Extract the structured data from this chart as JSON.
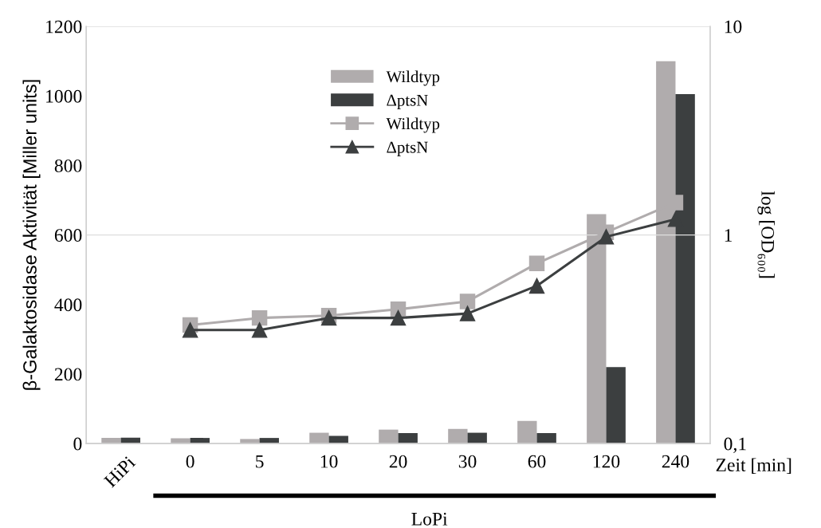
{
  "chart_data": {
    "type": "bar",
    "ylabel": "β-Galaktosidase Aktivität [Miller units]",
    "y2label": "log [OD₆₀₀]",
    "xlabel": "Zeit [min]",
    "categories": [
      "HiPi",
      "0",
      "5",
      "10",
      "20",
      "30",
      "60",
      "120",
      "240"
    ],
    "series": [
      {
        "name": "Wildtyp",
        "color": "#b0acad",
        "values": [
          16,
          15,
          13,
          31,
          40,
          42,
          65,
          660,
          1100
        ]
      },
      {
        "name": "ΔptsN",
        "color": "#3c3f40",
        "values": [
          17,
          16,
          16,
          22,
          30,
          31,
          30,
          220,
          1005
        ]
      },
      {
        "name": "Wildtyp",
        "type": "line",
        "axis": "y2",
        "marker": "square",
        "color": "#b0acad",
        "values": [
          null,
          0.37,
          0.4,
          0.41,
          0.44,
          0.48,
          0.73,
          1.03,
          1.43
        ]
      },
      {
        "name": "ΔptsN",
        "type": "line",
        "axis": "y2",
        "marker": "triangle",
        "color": "#3c3f40",
        "values": [
          null,
          0.35,
          0.35,
          0.4,
          0.4,
          0.42,
          0.57,
          0.98,
          1.19
        ]
      }
    ],
    "ylim": [
      0,
      1200
    ],
    "yticks": [
      0,
      200,
      400,
      600,
      800,
      1000,
      1200
    ],
    "log": "y2",
    "y2lim": [
      0.1,
      10
    ],
    "y2ticks": [
      {
        "value": 0.1,
        "label": "0,1"
      },
      1,
      10
    ],
    "grid": "y2",
    "legend": "top",
    "annotations": [
      "LoPi"
    ]
  }
}
